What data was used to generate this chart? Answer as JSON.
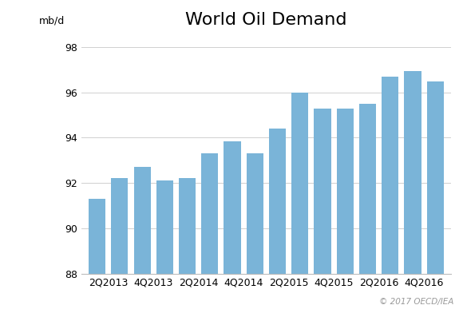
{
  "title": "World Oil Demand",
  "ylabel": "mb/d",
  "bar_values": [
    91.3,
    92.2,
    92.7,
    92.1,
    92.2,
    93.3,
    93.85,
    93.3,
    94.4,
    96.0,
    95.3,
    95.3,
    95.5,
    96.7,
    96.95,
    96.5
  ],
  "x_tick_labels": [
    "2Q2013",
    "4Q2013",
    "2Q2014",
    "4Q2014",
    "2Q2015",
    "4Q2015",
    "2Q2016",
    "4Q2016"
  ],
  "bar_color": "#7ab4d8",
  "background_color": "#ffffff",
  "ylim": [
    88,
    98.5
  ],
  "yticks": [
    88,
    90,
    92,
    94,
    96,
    98
  ],
  "grid_color": "#d0d0d0",
  "copyright_text": "© 2017 OECD/IEA",
  "title_fontsize": 16,
  "axis_fontsize": 9,
  "ylabel_fontsize": 9
}
